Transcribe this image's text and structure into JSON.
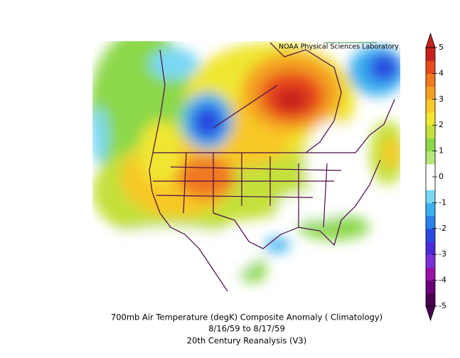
{
  "credit": "NOAA Physical Sciences Laboratory",
  "caption": [
    "700mb Air Temperature (degK) Composite Anomaly ( Climatology)",
    "8/16/59   to 8/17/59",
    "20th Century Reanalysis (V3)"
  ],
  "colorbar": {
    "ticks": [
      5,
      4,
      3,
      2,
      1,
      0,
      -1,
      -2,
      -3,
      -4,
      -5
    ],
    "colors": [
      "#4a0050",
      "#6a0078",
      "#9a10a8",
      "#7a30d8",
      "#4a2ad8",
      "#2a48e0",
      "#2a80e8",
      "#3ab0f0",
      "#78d8f4",
      "#ffffff",
      "#ffffff",
      "#b4e878",
      "#8cd84a",
      "#c4e03a",
      "#f0e630",
      "#f8c828",
      "#f4a020",
      "#f07820",
      "#e84a1c",
      "#c8201c"
    ]
  }
}
